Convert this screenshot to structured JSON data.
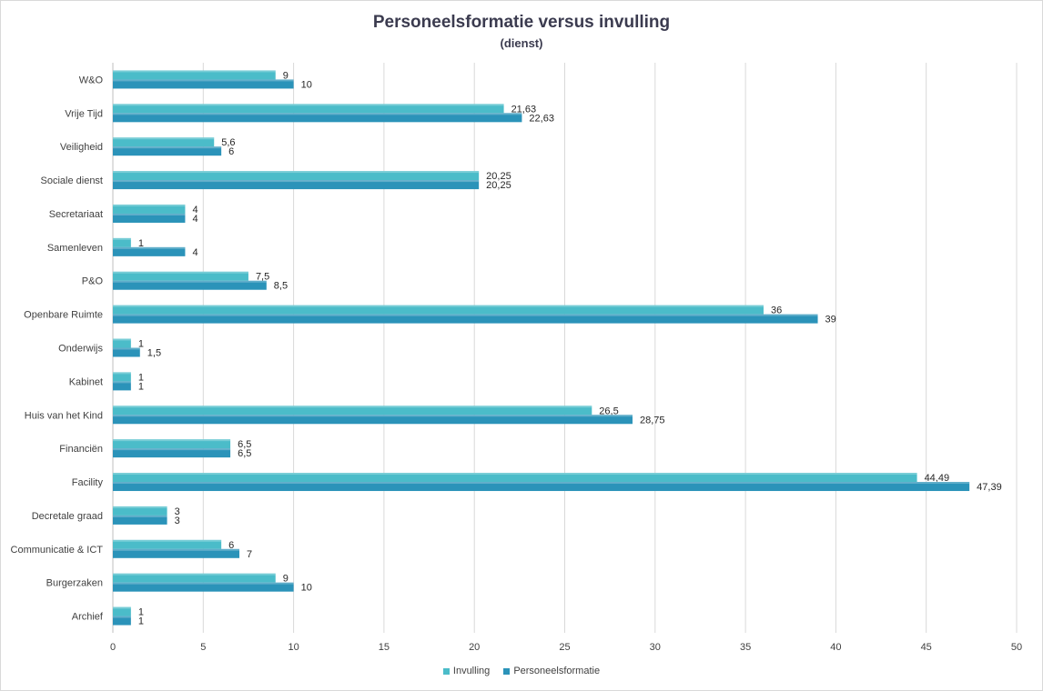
{
  "chart_data": {
    "type": "bar",
    "orientation": "horizontal",
    "title": "Personeelsformatie versus invulling",
    "subtitle": "(dienst)",
    "categories": [
      "W&O",
      "Vrije Tijd",
      "Veiligheid",
      "Sociale dienst",
      "Secretariaat",
      "Samenleven",
      "P&O",
      "Openbare Ruimte",
      "Onderwijs",
      "Kabinet",
      "Huis van het Kind",
      "Financiën",
      "Facility",
      "Decretale graad",
      "Communicatie & ICT",
      "Burgerzaken",
      "Archief"
    ],
    "series": [
      {
        "name": "Invulling",
        "color": "#4bbcc9",
        "values": [
          9,
          21.63,
          5.6,
          20.25,
          4,
          1,
          7.5,
          36,
          1,
          1,
          26.5,
          6.5,
          44.49,
          3,
          6,
          9,
          1
        ],
        "labels": [
          "9",
          "21,63",
          "5,6",
          "20,25",
          "4",
          "1",
          "7,5",
          "36",
          "1",
          "1",
          "26,5",
          "6,5",
          "44,49",
          "3",
          "6",
          "9",
          "1"
        ]
      },
      {
        "name": "Personeelsformatie",
        "color": "#2b93b9",
        "values": [
          10,
          22.63,
          6,
          20.25,
          4,
          4,
          8.5,
          39,
          1.5,
          1,
          28.75,
          6.5,
          47.39,
          3,
          7,
          10,
          1
        ],
        "labels": [
          "10",
          "22,63",
          "6",
          "20,25",
          "4",
          "4",
          "8,5",
          "39",
          "1,5",
          "1",
          "28,75",
          "6,5",
          "47,39",
          "3",
          "7",
          "10",
          "1"
        ]
      }
    ],
    "xlim": [
      0,
      50
    ],
    "xticks": [
      "0",
      "5",
      "10",
      "15",
      "20",
      "25",
      "30",
      "35",
      "40",
      "45",
      "50"
    ],
    "grid": true,
    "legend_position": "bottom"
  }
}
